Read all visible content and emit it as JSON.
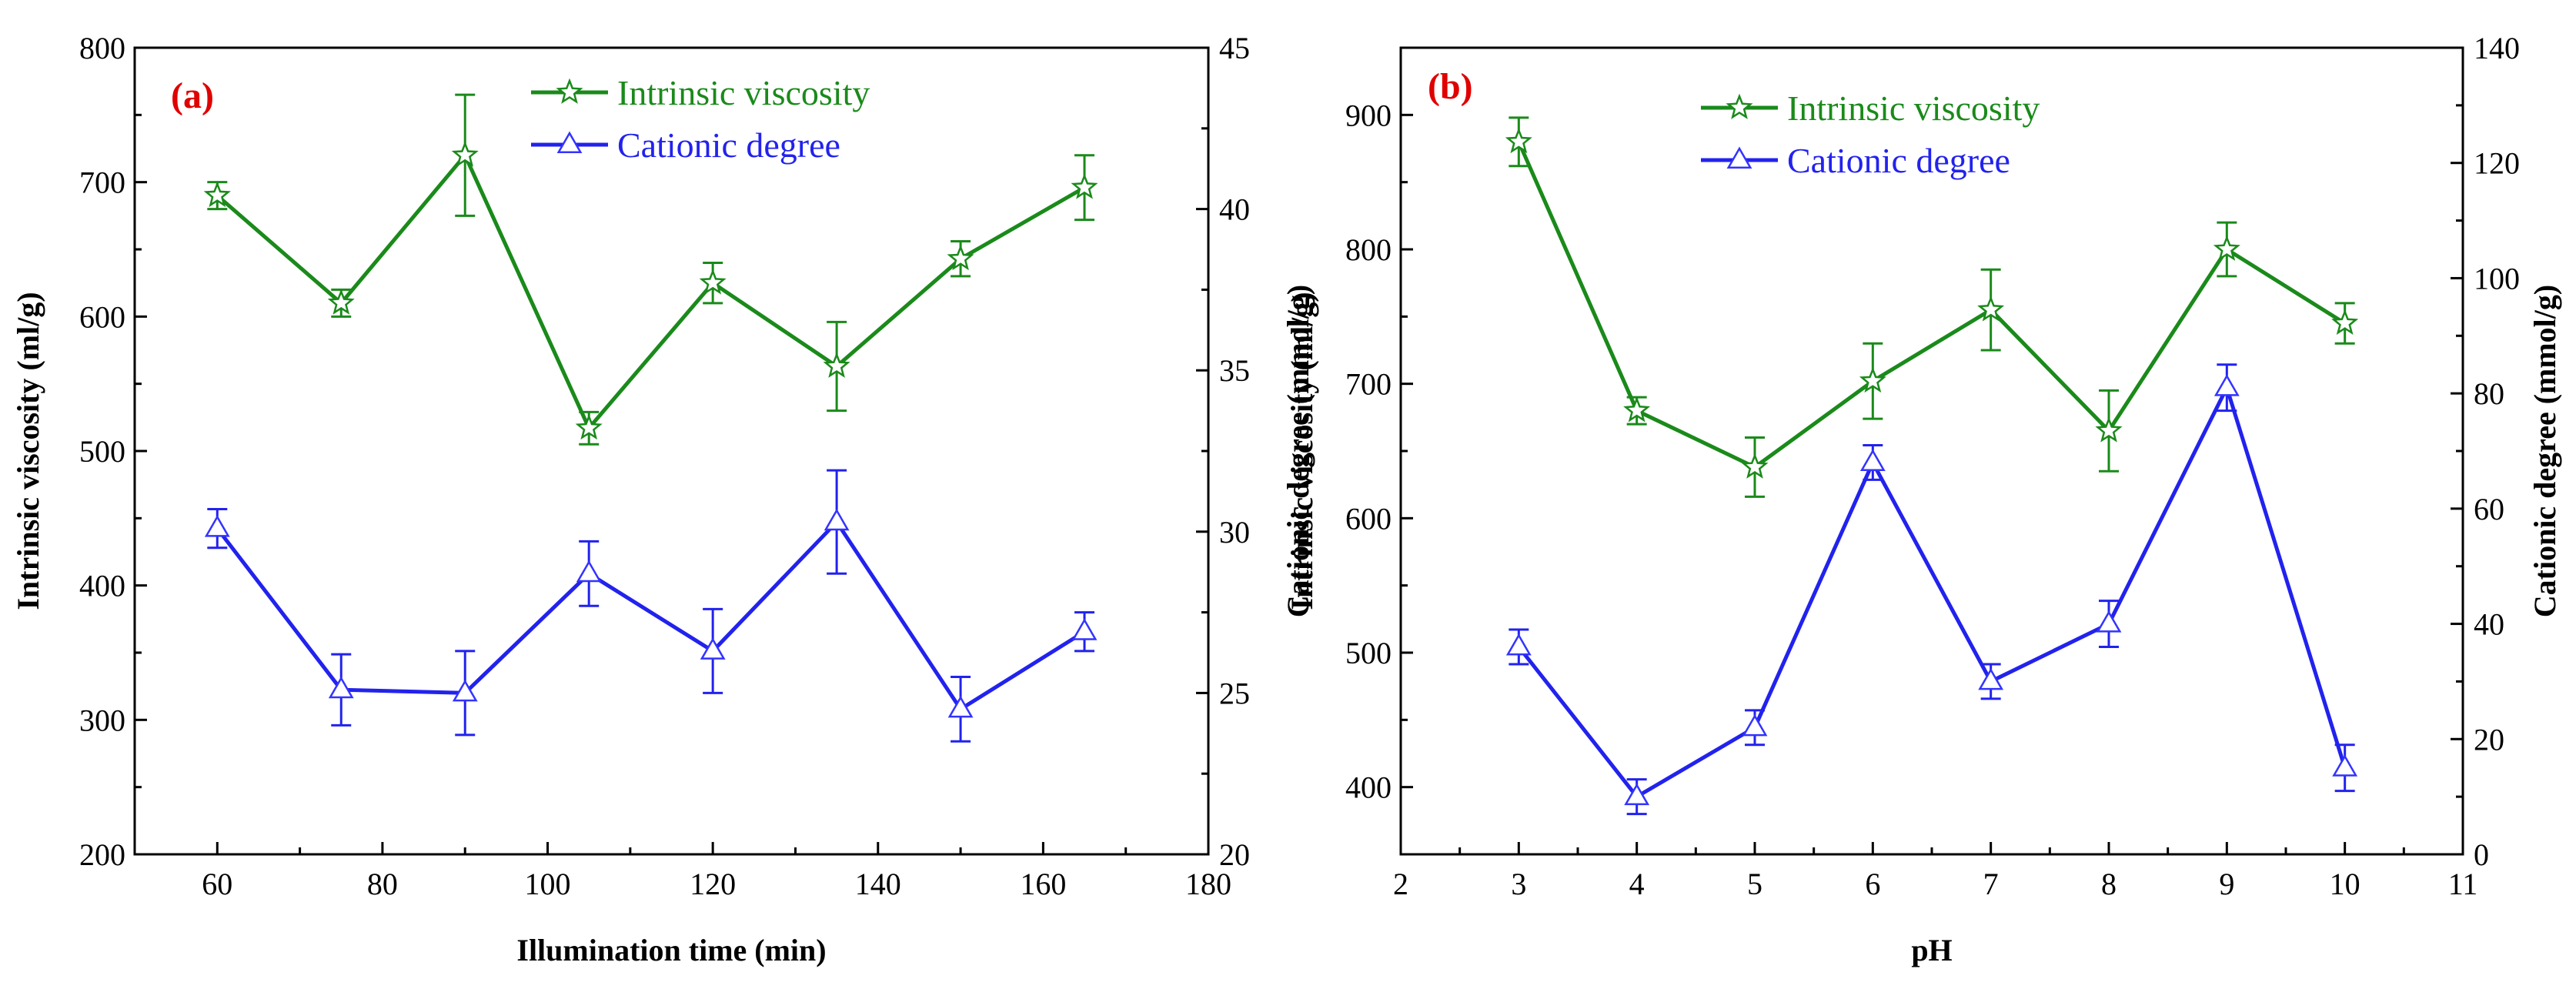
{
  "colors": {
    "green": "#1a8a1a",
    "blue": "#2222ee",
    "label_red": "#e00000"
  },
  "chart_data": [
    {
      "panel_label": "(a)",
      "type": "line",
      "xlabel": "Illumination time (min)",
      "ylabel_left": "Intrinsic viscosity (ml/g)",
      "ylabel_right": "Cationic degree (mmol/g)",
      "xlim": [
        50,
        180
      ],
      "x_ticks": [
        "60",
        "80",
        "100",
        "120",
        "140",
        "160",
        "180"
      ],
      "y_left_lim": [
        200,
        800
      ],
      "y_left_ticks": [
        "200",
        "300",
        "400",
        "500",
        "600",
        "700",
        "800"
      ],
      "y_right_lim": [
        20,
        45
      ],
      "y_right_ticks": [
        "20",
        "25",
        "30",
        "35",
        "40",
        "45"
      ],
      "legend_position": "top-right",
      "series": [
        {
          "name": "Intrinsic viscosity",
          "axis": "left",
          "marker": "star",
          "color": "#1a8a1a",
          "x": [
            60,
            75,
            90,
            105,
            120,
            135,
            150,
            165
          ],
          "y": [
            690,
            610,
            720,
            517,
            625,
            563,
            643,
            696
          ],
          "err": [
            10,
            10,
            45,
            12,
            15,
            33,
            13,
            24
          ]
        },
        {
          "name": "Cationic degree",
          "axis": "right",
          "marker": "triangle",
          "color": "#2222ee",
          "x": [
            60,
            75,
            90,
            105,
            120,
            135,
            150,
            165
          ],
          "y": [
            30.1,
            25.1,
            25.0,
            28.7,
            26.3,
            30.3,
            24.5,
            26.9
          ],
          "err": [
            0.6,
            1.1,
            1.3,
            1.0,
            1.3,
            1.6,
            1.0,
            0.6
          ]
        }
      ]
    },
    {
      "panel_label": "(b)",
      "type": "line",
      "xlabel": "pH",
      "ylabel_left": "Intrinsic viscosity (ml/g)",
      "ylabel_right": "Cationic degree (mmol/g)",
      "xlim": [
        2,
        11
      ],
      "x_ticks": [
        "2",
        "3",
        "4",
        "5",
        "6",
        "7",
        "8",
        "9",
        "10",
        "11"
      ],
      "y_left_lim": [
        350,
        950
      ],
      "y_left_ticks": [
        "400",
        "500",
        "600",
        "700",
        "800",
        "900"
      ],
      "y_right_lim": [
        0,
        140
      ],
      "y_right_ticks": [
        "0",
        "20",
        "40",
        "60",
        "80",
        "100",
        "120",
        "140"
      ],
      "legend_position": "top-center",
      "series": [
        {
          "name": "Intrinsic viscosity",
          "axis": "left",
          "marker": "star",
          "color": "#1a8a1a",
          "x": [
            3,
            4,
            5,
            6,
            7,
            8,
            9,
            10
          ],
          "y": [
            880,
            680,
            638,
            702,
            755,
            665,
            800,
            745
          ],
          "err": [
            18,
            10,
            22,
            28,
            30,
            30,
            20,
            15
          ]
        },
        {
          "name": "Cationic degree",
          "axis": "right",
          "marker": "triangle",
          "color": "#2222ee",
          "x": [
            3,
            4,
            5,
            6,
            7,
            8,
            9,
            10
          ],
          "y": [
            36,
            10,
            22,
            68,
            30,
            40,
            81,
            15
          ],
          "err": [
            3,
            3,
            3,
            3,
            3,
            4,
            4,
            4
          ]
        }
      ]
    }
  ]
}
